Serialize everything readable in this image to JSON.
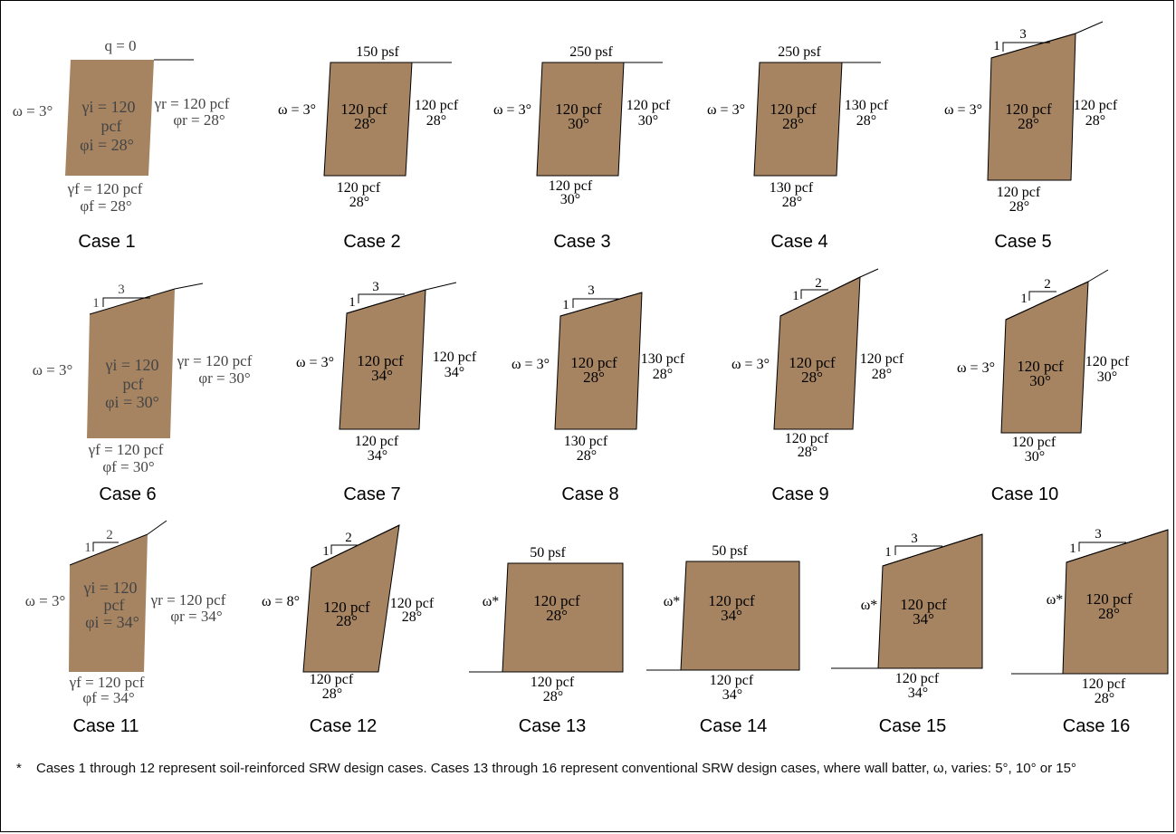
{
  "cases": [
    {
      "case_label": "Case 1",
      "style": "image",
      "surcharge": "q = 0",
      "batter": "ω = 3°",
      "infill_unit": "γi = 120",
      "infill_unit2": "pcf",
      "infill_angle": "φi = 28°",
      "retained_unit": "γr = 120 pcf",
      "retained_angle": "φr = 28°",
      "found_unit": "γf = 120 pcf",
      "found_angle": "φf = 28°"
    },
    {
      "case_label": "Case 2",
      "surcharge": "150 psf",
      "batter": "ω = 3°",
      "infill_unit": "120 pcf",
      "infill_angle": "28°",
      "retained_unit": "120 pcf",
      "retained_angle": "28°",
      "found_unit": "120 pcf",
      "found_angle": "28°"
    },
    {
      "case_label": "Case 3",
      "surcharge": "250 psf",
      "batter": "ω = 3°",
      "infill_unit": "120 pcf",
      "infill_angle": "30°",
      "retained_unit": "120 pcf",
      "retained_angle": "30°",
      "found_unit": "120 pcf",
      "found_angle": "30°"
    },
    {
      "case_label": "Case 4",
      "surcharge": "250 psf",
      "batter": "ω = 3°",
      "infill_unit": "120 pcf",
      "infill_angle": "28°",
      "retained_unit": "130 pcf",
      "retained_angle": "28°",
      "found_unit": "130 pcf",
      "found_angle": "28°"
    },
    {
      "case_label": "Case 5",
      "slope_v": "1",
      "slope_h": "3",
      "batter": "ω = 3°",
      "infill_unit": "120 pcf",
      "infill_angle": "28°",
      "retained_unit": "120 pcf",
      "retained_angle": "28°",
      "found_unit": "120 pcf",
      "found_angle": "28°"
    },
    {
      "case_label": "Case 6",
      "style": "image",
      "slope_v": "1",
      "slope_h": "3",
      "batter": "ω = 3°",
      "infill_unit": "γi = 120",
      "infill_unit2": "pcf",
      "infill_angle": "φi = 30°",
      "retained_unit": "γr = 120 pcf",
      "retained_angle": "φr = 30°",
      "found_unit": "γf = 120 pcf",
      "found_angle": "φf = 30°"
    },
    {
      "case_label": "Case 7",
      "slope_v": "1",
      "slope_h": "3",
      "batter": "ω = 3°",
      "infill_unit": "120 pcf",
      "infill_angle": "34°",
      "retained_unit": "120 pcf",
      "retained_angle": "34°",
      "found_unit": "120 pcf",
      "found_angle": "34°"
    },
    {
      "case_label": "Case 8",
      "slope_v": "1",
      "slope_h": "3",
      "batter": "ω = 3°",
      "infill_unit": "120 pcf",
      "infill_angle": "28°",
      "retained_unit": "130 pcf",
      "retained_angle": "28°",
      "found_unit": "130 pcf",
      "found_angle": "28°"
    },
    {
      "case_label": "Case 9",
      "slope_v": "1",
      "slope_h": "2",
      "batter": "ω = 3°",
      "infill_unit": "120 pcf",
      "infill_angle": "28°",
      "retained_unit": "120 pcf",
      "retained_angle": "28°",
      "found_unit": "120 pcf",
      "found_angle": "28°"
    },
    {
      "case_label": "Case 10",
      "slope_v": "1",
      "slope_h": "2",
      "batter": "ω = 3°",
      "infill_unit": "120 pcf",
      "infill_angle": "30°",
      "retained_unit": "120 pcf",
      "retained_angle": "30°",
      "found_unit": "120 pcf",
      "found_angle": "30°"
    },
    {
      "case_label": "Case 11",
      "style": "image",
      "slope_v": "1",
      "slope_h": "2",
      "batter": "ω = 3°",
      "infill_unit": "γi = 120",
      "infill_unit2": "pcf",
      "infill_angle": "φi = 34°",
      "retained_unit": "γr = 120 pcf",
      "retained_angle": "φr = 34°",
      "found_unit": "γf = 120 pcf",
      "found_angle": "φf = 34°"
    },
    {
      "case_label": "Case 12",
      "slope_v": "1",
      "slope_h": "2",
      "batter": "ω = 8°",
      "infill_unit": "120 pcf",
      "infill_angle": "28°",
      "retained_unit": "120 pcf",
      "retained_angle": "28°",
      "found_unit": "120 pcf",
      "found_angle": "28°"
    },
    {
      "case_label": "Case 13",
      "surcharge": "50 psf",
      "batter": "ω*",
      "infill_unit": "120 pcf",
      "infill_angle": "28°",
      "found_unit": "120 pcf",
      "found_angle": "28°"
    },
    {
      "case_label": "Case 14",
      "surcharge": "50 psf",
      "batter": "ω*",
      "infill_unit": "120 pcf",
      "infill_angle": "34°",
      "found_unit": "120 pcf",
      "found_angle": "34°"
    },
    {
      "case_label": "Case 15",
      "slope_v": "1",
      "slope_h": "3",
      "batter": "ω*",
      "infill_unit": "120 pcf",
      "infill_angle": "34°",
      "found_unit": "120 pcf",
      "found_angle": "34°"
    },
    {
      "case_label": "Case 16",
      "slope_v": "1",
      "slope_h": "3",
      "batter": "ω*",
      "infill_unit": "120 pcf",
      "infill_angle": "28°",
      "found_unit": "120 pcf",
      "found_angle": "28°"
    }
  ],
  "footnote": {
    "marker": "*",
    "text": "Cases 1 through 12 represent soil-reinforced SRW design cases. Cases 13 through 16 represent conventional SRW design cases, where wall batter, ω, varies: 5°, 10° or 15°"
  },
  "colors": {
    "soil_fill": "#a68462",
    "line": "#000000",
    "frame": "#000000"
  }
}
